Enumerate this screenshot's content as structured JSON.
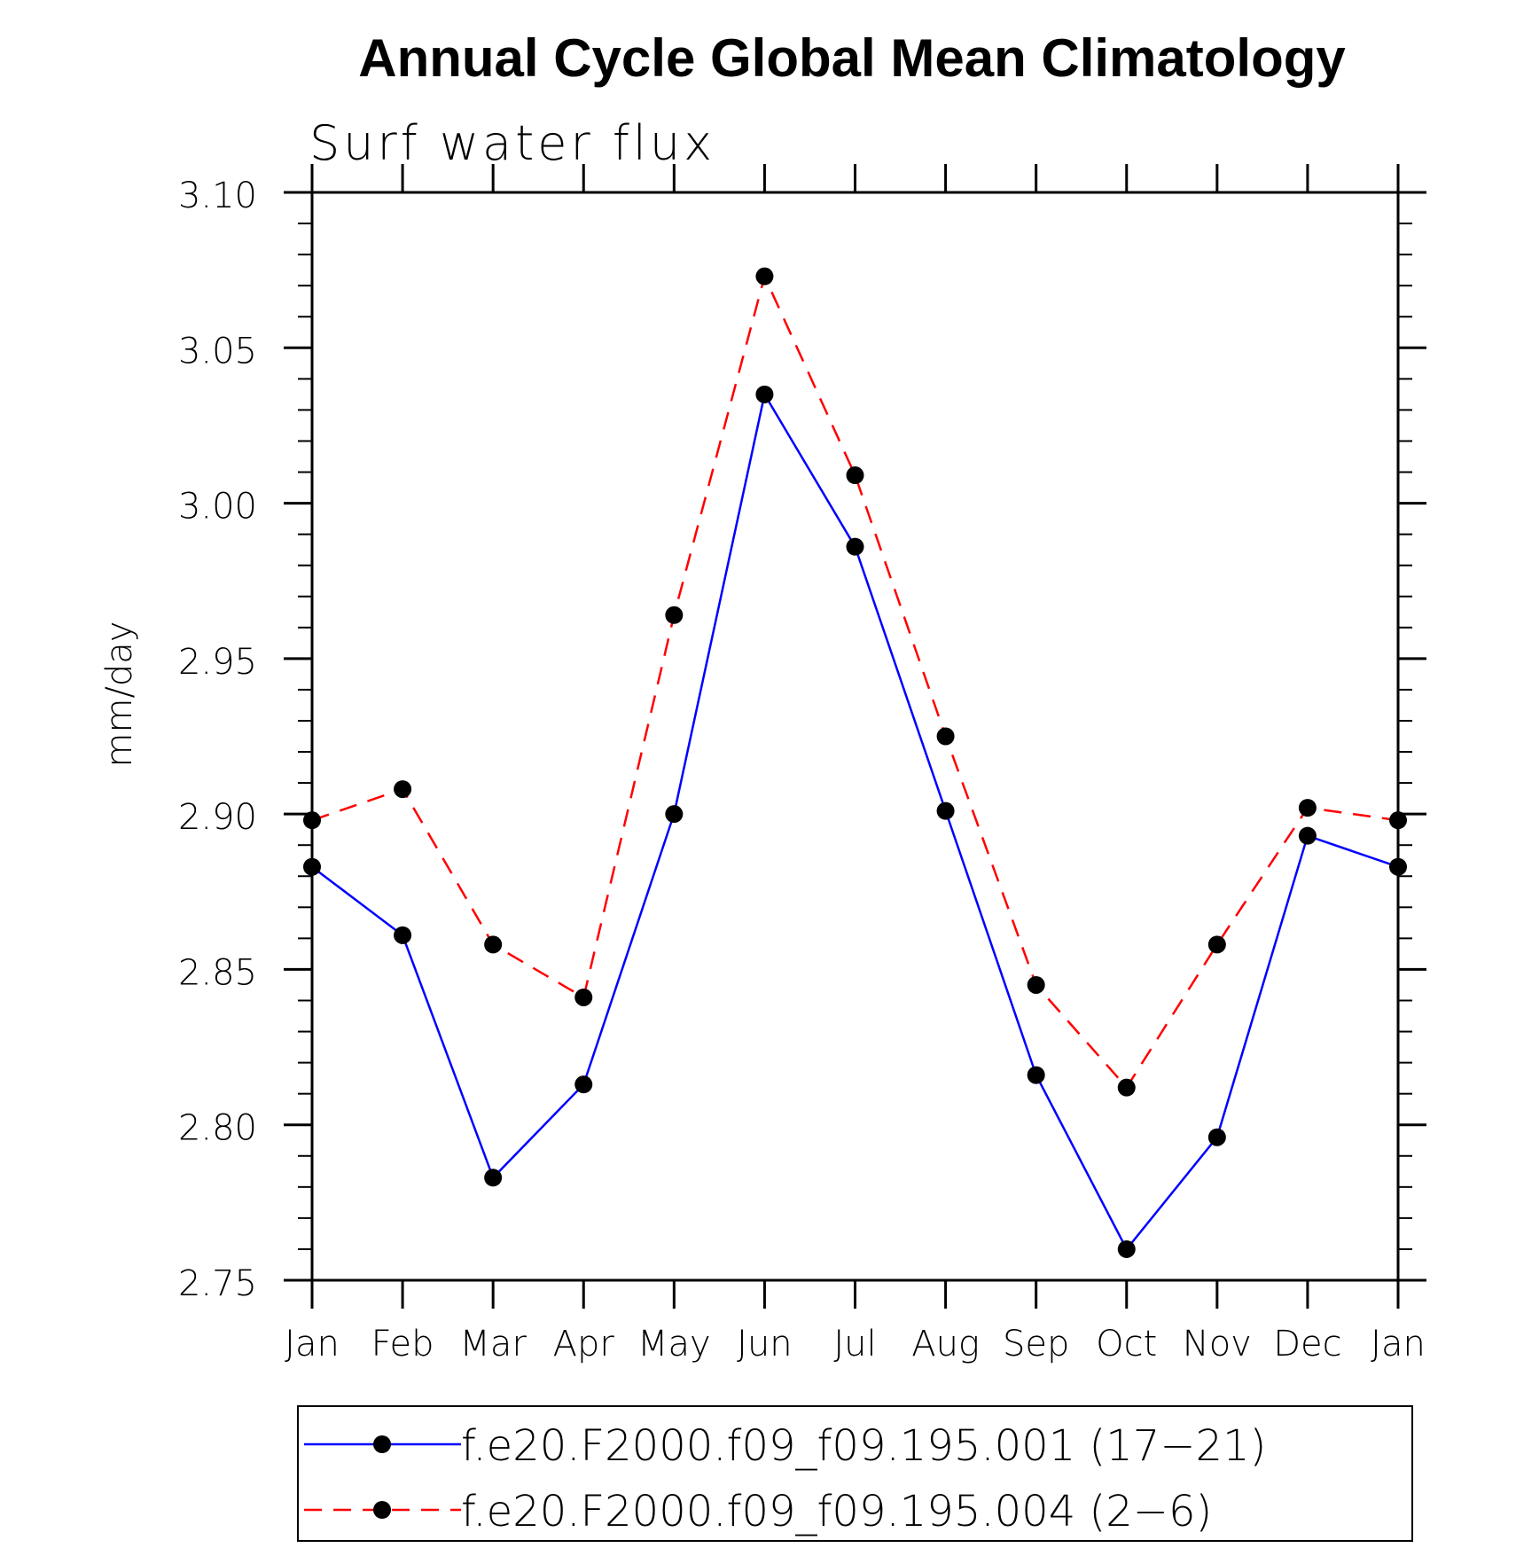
{
  "chart_data": {
    "type": "line",
    "title": "Annual Cycle Global Mean Climatology",
    "subtitle": "Surf water flux",
    "ylabel": "mm/day",
    "xlabel": "",
    "categories": [
      "Jan",
      "Feb",
      "Mar",
      "Apr",
      "May",
      "Jun",
      "Jul",
      "Aug",
      "Sep",
      "Oct",
      "Nov",
      "Dec",
      "Jan"
    ],
    "ylim": [
      2.75,
      3.1
    ],
    "yticks": [
      "2.75",
      "2.80",
      "2.85",
      "2.90",
      "2.95",
      "3.00",
      "3.05",
      "3.10"
    ],
    "grid": false,
    "legend_position": "bottom",
    "series": [
      {
        "name": "f.e20.F2000.f09_f09.195.001 (17−21)",
        "color": "#0000ff",
        "line_style": "solid",
        "marker": "filled-circle",
        "values": [
          2.883,
          2.861,
          2.783,
          2.813,
          2.9,
          3.035,
          2.986,
          2.901,
          2.816,
          2.76,
          2.796,
          2.893,
          2.883
        ]
      },
      {
        "name": "f.e20.F2000.f09_f09.195.004 (2−6)",
        "color": "#ff0000",
        "line_style": "dashed",
        "marker": "filled-circle",
        "values": [
          2.898,
          2.908,
          2.858,
          2.841,
          2.964,
          3.073,
          3.009,
          2.925,
          2.845,
          2.812,
          2.858,
          2.902,
          2.898
        ]
      }
    ]
  }
}
